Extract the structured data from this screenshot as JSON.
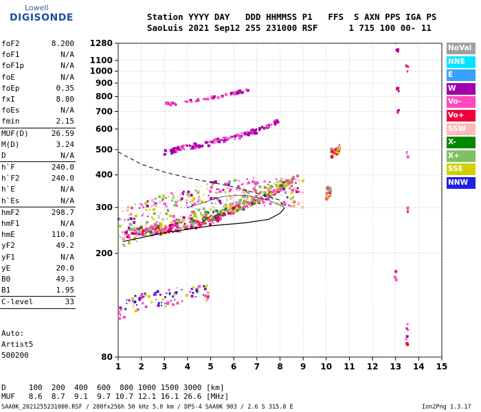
{
  "logo": {
    "line1": "Lowell",
    "line2": "DIGISONDE"
  },
  "header": {
    "line1": "Station YYYY DAY   DDD HHMMSS P1   FFS  S AXN PPS IGA PS",
    "line2": "SaoLuis 2021 Sep12 255 231000 RSF      1 715 100 00- 11"
  },
  "parameters": [
    {
      "name": "foF2",
      "value": "8.200"
    },
    {
      "name": "foF1",
      "value": "N/A"
    },
    {
      "name": "foF1p",
      "value": "N/A"
    },
    {
      "name": "foE",
      "value": "N/A"
    },
    {
      "name": "foEp",
      "value": "0.35"
    },
    {
      "name": "fxI",
      "value": "8.80"
    },
    {
      "name": "foEs",
      "value": "N/A"
    },
    {
      "name": "fmin",
      "value": "2.15",
      "sep": true
    },
    {
      "name": "MUF(D)",
      "value": "26.59"
    },
    {
      "name": "M(D)",
      "value": "3.24"
    },
    {
      "name": "D",
      "value": "N/A",
      "sep": true
    },
    {
      "name": "h`F",
      "value": "240.0"
    },
    {
      "name": "h`F2",
      "value": "240.0"
    },
    {
      "name": "h`E",
      "value": "N/A"
    },
    {
      "name": "h`Es",
      "value": "N/A",
      "sep": true
    },
    {
      "name": "hmF2",
      "value": "298.7"
    },
    {
      "name": "hmF1",
      "value": "N/A"
    },
    {
      "name": "hmE",
      "value": "110.0"
    },
    {
      "name": "yF2",
      "value": "49.2"
    },
    {
      "name": "yF1",
      "value": "N/A"
    },
    {
      "name": "yE",
      "value": "20.0"
    },
    {
      "name": "B0",
      "value": "49.3"
    },
    {
      "name": "B1",
      "value": "1.95",
      "sep": true
    },
    {
      "name": "C-level",
      "value": "33",
      "sep": true
    }
  ],
  "autoscaling": {
    "line1": "Auto:",
    "line2": "Artist5",
    "line3": "500200"
  },
  "legend": [
    {
      "label": "NoVal",
      "color": "#a0a0a0"
    },
    {
      "label": "NNE",
      "color": "#00e5ff"
    },
    {
      "label": "E",
      "color": "#3aa0ff"
    },
    {
      "label": "W",
      "color": "#a000b0"
    },
    {
      "label": "Vo-",
      "color": "#ff48c0"
    },
    {
      "label": "Vo+",
      "color": "#f0003c"
    },
    {
      "label": "SSW",
      "color": "#ffb8b8"
    },
    {
      "label": "X-",
      "color": "#008800"
    },
    {
      "label": "X+",
      "color": "#80c060"
    },
    {
      "label": "SSE",
      "color": "#d0d000"
    },
    {
      "label": "NNW",
      "color": "#2020e0"
    }
  ],
  "chart_data": {
    "type": "scatter",
    "xlim": [
      1,
      15
    ],
    "ylim": [
      80,
      1280
    ],
    "yscale": "log",
    "x_ticks": [
      "1",
      "2",
      "3",
      "4",
      "5",
      "6",
      "7",
      "8",
      "9",
      "10",
      "11",
      "12",
      "13",
      "14",
      "15"
    ],
    "y_ticks": [
      "80",
      "200",
      "300",
      "400",
      "500",
      "600",
      "700",
      "800",
      "900",
      "1000",
      "1100",
      "1280"
    ],
    "traces": {
      "o_trace": [
        [
          1.3,
          240
        ],
        [
          2,
          243
        ],
        [
          3,
          247
        ],
        [
          4,
          255
        ],
        [
          5,
          268
        ],
        [
          5.8,
          288
        ],
        [
          6.2,
          300
        ],
        [
          7,
          318
        ],
        [
          7.6,
          335
        ],
        [
          8,
          355
        ],
        [
          8.2,
          370
        ]
      ],
      "x_trace": [
        [
          1.6,
          240
        ],
        [
          3,
          250
        ],
        [
          4,
          262
        ],
        [
          5,
          280
        ],
        [
          6,
          300
        ],
        [
          7,
          325
        ],
        [
          8,
          360
        ],
        [
          8.8,
          390
        ]
      ],
      "second_hop": [
        [
          3,
          490
        ],
        [
          4,
          510
        ],
        [
          5,
          530
        ],
        [
          6,
          555
        ],
        [
          7,
          590
        ],
        [
          7.6,
          620
        ],
        [
          8,
          650
        ]
      ],
      "second_hop_x": [
        [
          3,
          745
        ],
        [
          4,
          760
        ],
        [
          5,
          790
        ],
        [
          6,
          820
        ],
        [
          6.7,
          850
        ]
      ],
      "low_echo": [
        [
          1,
          120
        ],
        [
          2,
          130
        ],
        [
          3,
          135
        ],
        [
          4,
          140
        ],
        [
          5,
          142
        ]
      ],
      "spread": [
        [
          1,
          255
        ],
        [
          2,
          270
        ],
        [
          3,
          290
        ],
        [
          4,
          310
        ],
        [
          5,
          330
        ],
        [
          6,
          340
        ],
        [
          7,
          345
        ],
        [
          8,
          350
        ],
        [
          9,
          340
        ]
      ],
      "blob_10": [
        [
          10,
          340
        ],
        [
          10.2,
          350
        ],
        [
          10.1,
          500
        ],
        [
          10.3,
          480
        ],
        [
          10.6,
          510
        ]
      ],
      "right_scatter": [
        [
          13,
          1280
        ],
        [
          13.1,
          1200
        ],
        [
          13.5,
          1050
        ],
        [
          13.5,
          1000
        ],
        [
          13.1,
          850
        ],
        [
          13.1,
          700
        ],
        [
          13.5,
          480
        ],
        [
          13.5,
          300
        ],
        [
          13,
          170
        ],
        [
          13.5,
          100
        ]
      ]
    },
    "profile": [
      [
        1.2,
        222
      ],
      [
        3,
        240
      ],
      [
        5,
        255
      ],
      [
        6.5,
        262
      ],
      [
        7.5,
        270
      ],
      [
        8,
        285
      ],
      [
        8.2,
        299
      ]
    ],
    "dashed_profile": [
      [
        1,
        490
      ],
      [
        2,
        440
      ],
      [
        3,
        410
      ],
      [
        4,
        390
      ],
      [
        5,
        375
      ],
      [
        6,
        360
      ],
      [
        7,
        340
      ],
      [
        8,
        320
      ],
      [
        8.2,
        300
      ]
    ],
    "profile_shell": [
      [
        4,
        300
      ],
      [
        5.5,
        330
      ],
      [
        6.5,
        335
      ],
      [
        7.5,
        320
      ],
      [
        8.2,
        300
      ]
    ],
    "distance_table": {
      "D_label": "D",
      "D": [
        "100",
        "200",
        "400",
        "600",
        "800",
        "1000",
        "1500",
        "3000"
      ],
      "D_unit": "[km]",
      "MUF_label": "MUF",
      "MUF": [
        "8.6",
        "8.7",
        "9.1",
        "9.7",
        "10.7",
        "12.1",
        "16.1",
        "26.6"
      ],
      "MUF_unit": "[MHz]"
    }
  },
  "footer": {
    "text": "SAA0K_2021255231000.RSF / 280fx256h 50 kHz 5.0 km / DPS-4 SAA0K 903 / 2.6 S 315.8 E",
    "version": "Ion2Png 1.3.17"
  }
}
